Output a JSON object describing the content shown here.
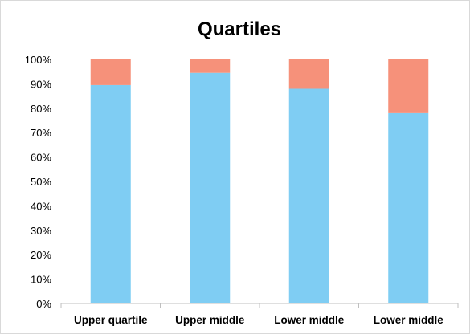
{
  "chart_data": {
    "type": "bar",
    "stacked": true,
    "title": "Quartiles",
    "xlabel": "",
    "ylabel": "",
    "categories": [
      "Upper quartile",
      "Upper middle",
      "Lower middle",
      "Lower middle"
    ],
    "series": [
      {
        "values": [
          89.5,
          94.5,
          88,
          78
        ],
        "color": "#7fcdf3"
      },
      {
        "values": [
          10.5,
          5.5,
          12,
          22
        ],
        "color": "#f6917a"
      }
    ],
    "ylim": [
      0,
      100
    ],
    "yticks": [
      "0%",
      "10%",
      "20%",
      "30%",
      "40%",
      "50%",
      "60%",
      "70%",
      "80%",
      "90%",
      "100%"
    ],
    "grid": false,
    "legend": "none"
  }
}
